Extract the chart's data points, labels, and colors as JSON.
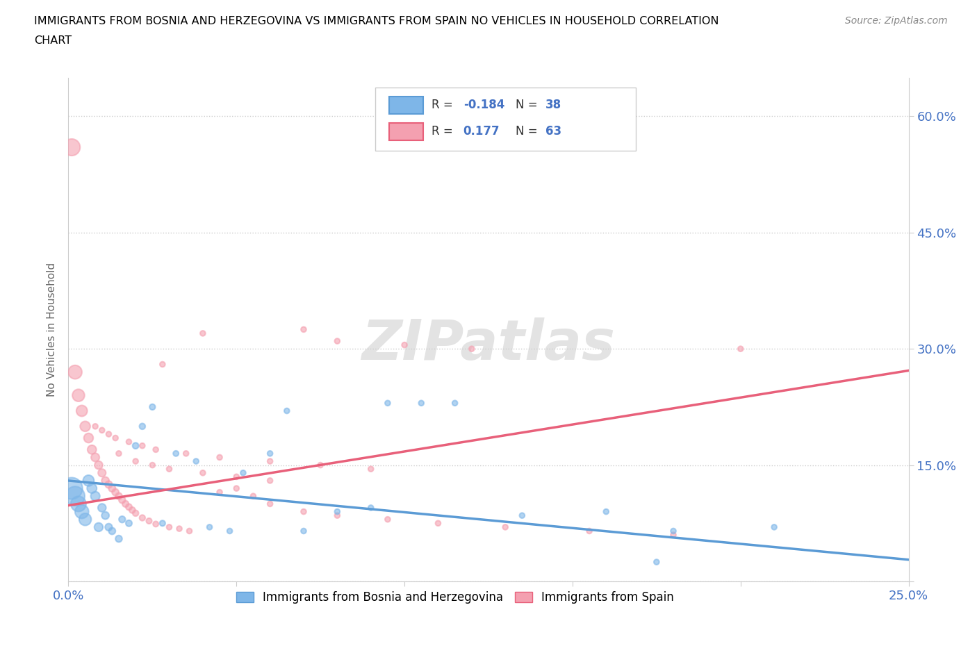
{
  "title_line1": "IMMIGRANTS FROM BOSNIA AND HERZEGOVINA VS IMMIGRANTS FROM SPAIN NO VEHICLES IN HOUSEHOLD CORRELATION",
  "title_line2": "CHART",
  "source": "Source: ZipAtlas.com",
  "ylabel": "No Vehicles in Household",
  "xlim": [
    0.0,
    0.25
  ],
  "ylim": [
    0.0,
    0.65
  ],
  "xticks": [
    0.0,
    0.05,
    0.1,
    0.15,
    0.2,
    0.25
  ],
  "yticks": [
    0.0,
    0.15,
    0.3,
    0.45,
    0.6
  ],
  "r_bosnia": -0.184,
  "n_bosnia": 38,
  "r_spain": 0.177,
  "n_spain": 63,
  "color_bosnia": "#7EB6E8",
  "color_spain": "#F4A0B0",
  "line_color_bosnia": "#5B9BD5",
  "line_color_spain": "#E8607A",
  "bosnia_line_y0": 0.13,
  "bosnia_line_y1": 0.028,
  "spain_line_y0": 0.098,
  "spain_line_y1": 0.272,
  "bosnia_x": [
    0.001,
    0.002,
    0.003,
    0.004,
    0.005,
    0.006,
    0.007,
    0.008,
    0.009,
    0.01,
    0.011,
    0.012,
    0.013,
    0.015,
    0.016,
    0.018,
    0.02,
    0.022,
    0.025,
    0.028,
    0.032,
    0.038,
    0.042,
    0.048,
    0.052,
    0.06,
    0.065,
    0.07,
    0.08,
    0.095,
    0.105,
    0.115,
    0.135,
    0.16,
    0.18,
    0.21,
    0.175,
    0.09
  ],
  "bosnia_y": [
    0.12,
    0.11,
    0.1,
    0.09,
    0.08,
    0.13,
    0.12,
    0.11,
    0.07,
    0.095,
    0.085,
    0.07,
    0.065,
    0.055,
    0.08,
    0.075,
    0.175,
    0.2,
    0.225,
    0.075,
    0.165,
    0.155,
    0.07,
    0.065,
    0.14,
    0.165,
    0.22,
    0.065,
    0.09,
    0.23,
    0.23,
    0.23,
    0.085,
    0.09,
    0.065,
    0.07,
    0.025,
    0.095
  ],
  "bosnia_sizes": [
    500,
    400,
    250,
    200,
    160,
    130,
    100,
    90,
    80,
    70,
    60,
    55,
    50,
    48,
    45,
    42,
    40,
    38,
    36,
    34,
    32,
    30,
    30,
    30,
    30,
    30,
    30,
    30,
    30,
    30,
    30,
    30,
    30,
    30,
    30,
    30,
    30,
    30
  ],
  "spain_x": [
    0.001,
    0.002,
    0.003,
    0.004,
    0.005,
    0.006,
    0.007,
    0.008,
    0.009,
    0.01,
    0.011,
    0.012,
    0.013,
    0.014,
    0.015,
    0.016,
    0.017,
    0.018,
    0.019,
    0.02,
    0.022,
    0.024,
    0.026,
    0.028,
    0.03,
    0.033,
    0.036,
    0.04,
    0.045,
    0.05,
    0.055,
    0.06,
    0.07,
    0.08,
    0.095,
    0.11,
    0.13,
    0.155,
    0.18,
    0.015,
    0.02,
    0.025,
    0.03,
    0.04,
    0.05,
    0.06,
    0.07,
    0.08,
    0.1,
    0.12,
    0.008,
    0.01,
    0.012,
    0.014,
    0.018,
    0.022,
    0.026,
    0.035,
    0.045,
    0.06,
    0.075,
    0.09,
    0.2
  ],
  "spain_y": [
    0.56,
    0.27,
    0.24,
    0.22,
    0.2,
    0.185,
    0.17,
    0.16,
    0.15,
    0.14,
    0.13,
    0.125,
    0.12,
    0.115,
    0.11,
    0.105,
    0.1,
    0.096,
    0.092,
    0.088,
    0.082,
    0.078,
    0.074,
    0.28,
    0.07,
    0.068,
    0.065,
    0.32,
    0.115,
    0.12,
    0.11,
    0.1,
    0.09,
    0.085,
    0.08,
    0.075,
    0.07,
    0.065,
    0.06,
    0.165,
    0.155,
    0.15,
    0.145,
    0.14,
    0.135,
    0.13,
    0.325,
    0.31,
    0.305,
    0.3,
    0.2,
    0.195,
    0.19,
    0.185,
    0.18,
    0.175,
    0.17,
    0.165,
    0.16,
    0.155,
    0.15,
    0.145,
    0.3
  ],
  "spain_sizes": [
    300,
    200,
    160,
    130,
    110,
    95,
    85,
    75,
    70,
    65,
    60,
    55,
    52,
    50,
    48,
    46,
    44,
    42,
    40,
    38,
    36,
    34,
    32,
    30,
    30,
    30,
    30,
    30,
    30,
    30,
    30,
    30,
    30,
    30,
    30,
    30,
    30,
    30,
    30,
    30,
    30,
    30,
    30,
    30,
    30,
    30,
    30,
    30,
    30,
    30,
    30,
    30,
    30,
    30,
    30,
    30,
    30,
    30,
    30,
    30,
    30,
    30,
    30
  ]
}
